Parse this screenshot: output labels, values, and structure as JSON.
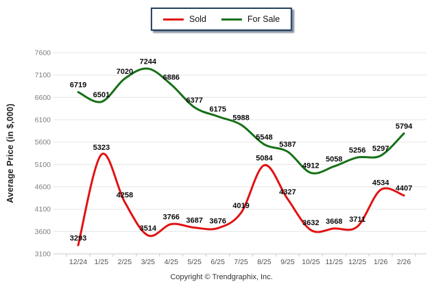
{
  "legend": {
    "items": [
      {
        "label": "Sold",
        "color": "#e11212"
      },
      {
        "label": "For Sale",
        "color": "#157015"
      }
    ]
  },
  "y_axis": {
    "title": "Average Price (in $,000)"
  },
  "footer": {
    "copyright": "Copyright © Trendgraphix, Inc."
  },
  "chart_data": {
    "type": "line",
    "title": "",
    "xlabel": "",
    "ylabel": "Average Price (in $,000)",
    "ylim": [
      3100,
      7600
    ],
    "yticks": [
      3100,
      3600,
      4100,
      4600,
      5100,
      5600,
      6100,
      6600,
      7100,
      7600
    ],
    "grid": true,
    "legend_position": "top-center",
    "data_labels": true,
    "smooth": true,
    "categories": [
      "12/24",
      "1/25",
      "2/25",
      "3/25",
      "4/25",
      "5/25",
      "6/25",
      "7/25",
      "8/25",
      "9/25",
      "10/25",
      "11/25",
      "12/25",
      "1/26",
      "2/26"
    ],
    "series": [
      {
        "name": "Sold",
        "color": "#e11212",
        "values": [
          3293,
          5323,
          4258,
          3514,
          3766,
          3687,
          3676,
          4019,
          5084,
          4327,
          3632,
          3668,
          3711,
          4534,
          4407
        ]
      },
      {
        "name": "For Sale",
        "color": "#157015",
        "values": [
          6719,
          6501,
          7020,
          7244,
          6886,
          6377,
          6175,
          5988,
          5548,
          5387,
          4912,
          5058,
          5256,
          5297,
          5794
        ]
      }
    ]
  }
}
